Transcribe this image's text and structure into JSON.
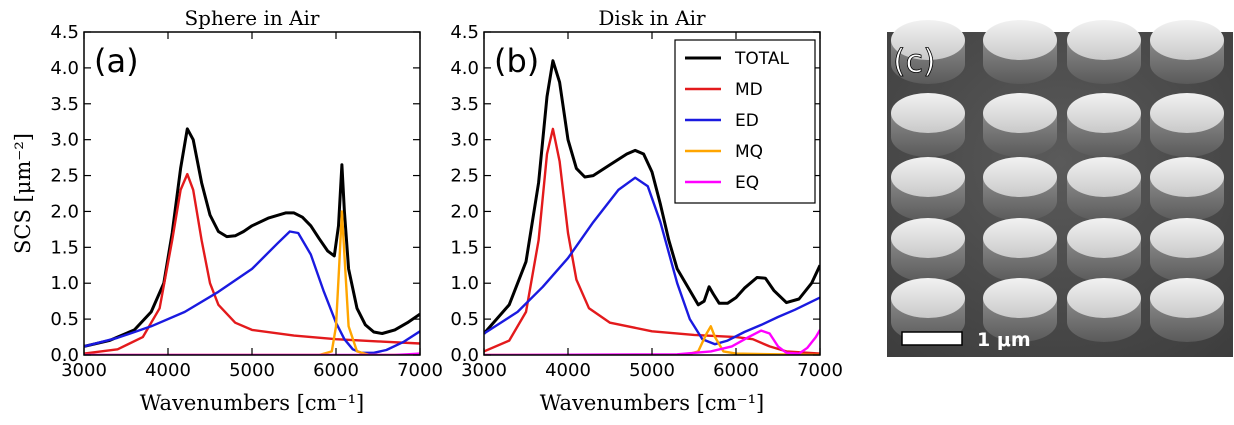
{
  "figure": {
    "panel_c": {
      "label": "(c)",
      "scale_bar_label": "1 μm"
    }
  },
  "chart_data": [
    {
      "type": "line",
      "panel_label": "(a)",
      "title": "Sphere in Air",
      "xlabel": "Wavenumbers [cm⁻¹]",
      "ylabel": "SCS [μm⁻²]",
      "xlim": [
        3000,
        7000
      ],
      "ylim": [
        0,
        4.5
      ],
      "xticks": [
        "3000",
        "4000",
        "5000",
        "6000",
        "7000"
      ],
      "yticks": [
        "0.0",
        "0.5",
        "1.0",
        "1.5",
        "2.0",
        "2.5",
        "3.0",
        "3.5",
        "4.0",
        "4.5"
      ],
      "grid": false,
      "series": [
        {
          "name": "TOTAL",
          "color": "#000000",
          "points": [
            [
              3000,
              0.12
            ],
            [
              3300,
              0.2
            ],
            [
              3600,
              0.35
            ],
            [
              3800,
              0.6
            ],
            [
              3950,
              1.0
            ],
            [
              4050,
              1.7
            ],
            [
              4150,
              2.6
            ],
            [
              4230,
              3.15
            ],
            [
              4300,
              3.0
            ],
            [
              4400,
              2.4
            ],
            [
              4500,
              1.95
            ],
            [
              4600,
              1.72
            ],
            [
              4700,
              1.65
            ],
            [
              4800,
              1.66
            ],
            [
              4900,
              1.72
            ],
            [
              5000,
              1.8
            ],
            [
              5200,
              1.91
            ],
            [
              5400,
              1.98
            ],
            [
              5500,
              1.98
            ],
            [
              5600,
              1.92
            ],
            [
              5700,
              1.8
            ],
            [
              5800,
              1.62
            ],
            [
              5900,
              1.45
            ],
            [
              5980,
              1.38
            ],
            [
              6030,
              1.8
            ],
            [
              6070,
              2.65
            ],
            [
              6100,
              2.0
            ],
            [
              6150,
              1.2
            ],
            [
              6250,
              0.65
            ],
            [
              6350,
              0.42
            ],
            [
              6450,
              0.32
            ],
            [
              6550,
              0.3
            ],
            [
              6700,
              0.35
            ],
            [
              6850,
              0.45
            ],
            [
              7000,
              0.57
            ]
          ]
        },
        {
          "name": "MD",
          "color": "#e31a1c",
          "points": [
            [
              3000,
              0.02
            ],
            [
              3400,
              0.08
            ],
            [
              3700,
              0.25
            ],
            [
              3900,
              0.65
            ],
            [
              4050,
              1.6
            ],
            [
              4150,
              2.3
            ],
            [
              4230,
              2.52
            ],
            [
              4300,
              2.3
            ],
            [
              4400,
              1.6
            ],
            [
              4500,
              1.0
            ],
            [
              4600,
              0.7
            ],
            [
              4800,
              0.45
            ],
            [
              5000,
              0.35
            ],
            [
              5500,
              0.27
            ],
            [
              6000,
              0.22
            ],
            [
              6500,
              0.19
            ],
            [
              7000,
              0.16
            ]
          ]
        },
        {
          "name": "ED",
          "color": "#1a1ae0",
          "points": [
            [
              3000,
              0.12
            ],
            [
              3400,
              0.24
            ],
            [
              3800,
              0.4
            ],
            [
              4200,
              0.6
            ],
            [
              4600,
              0.88
            ],
            [
              5000,
              1.2
            ],
            [
              5300,
              1.55
            ],
            [
              5450,
              1.72
            ],
            [
              5550,
              1.7
            ],
            [
              5700,
              1.4
            ],
            [
              5850,
              0.9
            ],
            [
              6000,
              0.45
            ],
            [
              6100,
              0.22
            ],
            [
              6200,
              0.08
            ],
            [
              6300,
              0.03
            ],
            [
              6450,
              0.03
            ],
            [
              6600,
              0.07
            ],
            [
              6800,
              0.18
            ],
            [
              7000,
              0.33
            ]
          ]
        },
        {
          "name": "MQ",
          "color": "#ffa500",
          "points": [
            [
              3000,
              0.0
            ],
            [
              5800,
              0.0
            ],
            [
              5950,
              0.05
            ],
            [
              6000,
              0.4
            ],
            [
              6040,
              1.3
            ],
            [
              6070,
              2.0
            ],
            [
              6100,
              1.4
            ],
            [
              6150,
              0.4
            ],
            [
              6250,
              0.05
            ],
            [
              6400,
              0.0
            ],
            [
              7000,
              0.0
            ]
          ]
        },
        {
          "name": "EQ",
          "color": "#ff00ff",
          "points": [
            [
              3000,
              0.0
            ],
            [
              6700,
              0.0
            ],
            [
              6850,
              0.01
            ],
            [
              7000,
              0.02
            ]
          ]
        }
      ]
    },
    {
      "type": "line",
      "panel_label": "(b)",
      "title": "Disk in Air",
      "xlabel": "Wavenumbers [cm⁻¹]",
      "ylabel": "",
      "xlim": [
        3000,
        7000
      ],
      "ylim": [
        0,
        4.5
      ],
      "xticks": [
        "3000",
        "4000",
        "5000",
        "6000",
        "7000"
      ],
      "yticks": [
        "0.0",
        "0.5",
        "1.0",
        "1.5",
        "2.0",
        "2.5",
        "3.0",
        "3.5",
        "4.0",
        "4.5"
      ],
      "grid": false,
      "legend": {
        "position": "top-right",
        "entries": [
          "TOTAL",
          "MD",
          "ED",
          "MQ",
          "EQ"
        ]
      },
      "series": [
        {
          "name": "TOTAL",
          "color": "#000000",
          "points": [
            [
              3000,
              0.3
            ],
            [
              3300,
              0.7
            ],
            [
              3500,
              1.3
            ],
            [
              3650,
              2.4
            ],
            [
              3750,
              3.6
            ],
            [
              3820,
              4.1
            ],
            [
              3900,
              3.8
            ],
            [
              4000,
              3.0
            ],
            [
              4100,
              2.6
            ],
            [
              4200,
              2.48
            ],
            [
              4300,
              2.5
            ],
            [
              4500,
              2.65
            ],
            [
              4700,
              2.8
            ],
            [
              4800,
              2.85
            ],
            [
              4900,
              2.8
            ],
            [
              5000,
              2.55
            ],
            [
              5100,
              2.1
            ],
            [
              5200,
              1.6
            ],
            [
              5300,
              1.2
            ],
            [
              5450,
              0.9
            ],
            [
              5550,
              0.7
            ],
            [
              5620,
              0.75
            ],
            [
              5680,
              0.95
            ],
            [
              5730,
              0.85
            ],
            [
              5800,
              0.72
            ],
            [
              5900,
              0.72
            ],
            [
              6000,
              0.8
            ],
            [
              6100,
              0.93
            ],
            [
              6250,
              1.08
            ],
            [
              6350,
              1.07
            ],
            [
              6450,
              0.9
            ],
            [
              6600,
              0.73
            ],
            [
              6750,
              0.78
            ],
            [
              6900,
              1.0
            ],
            [
              7000,
              1.25
            ]
          ]
        },
        {
          "name": "MD",
          "color": "#e31a1c",
          "points": [
            [
              3000,
              0.05
            ],
            [
              3300,
              0.2
            ],
            [
              3500,
              0.6
            ],
            [
              3650,
              1.6
            ],
            [
              3750,
              2.8
            ],
            [
              3820,
              3.15
            ],
            [
              3900,
              2.7
            ],
            [
              4000,
              1.7
            ],
            [
              4100,
              1.05
            ],
            [
              4250,
              0.65
            ],
            [
              4500,
              0.45
            ],
            [
              5000,
              0.33
            ],
            [
              5500,
              0.28
            ],
            [
              6000,
              0.25
            ],
            [
              6200,
              0.22
            ],
            [
              6400,
              0.12
            ],
            [
              6600,
              0.05
            ],
            [
              7000,
              0.02
            ]
          ]
        },
        {
          "name": "ED",
          "color": "#1a1ae0",
          "points": [
            [
              3000,
              0.3
            ],
            [
              3400,
              0.6
            ],
            [
              3700,
              0.95
            ],
            [
              4000,
              1.35
            ],
            [
              4300,
              1.85
            ],
            [
              4600,
              2.3
            ],
            [
              4800,
              2.47
            ],
            [
              4950,
              2.35
            ],
            [
              5100,
              1.85
            ],
            [
              5300,
              1.0
            ],
            [
              5450,
              0.5
            ],
            [
              5600,
              0.22
            ],
            [
              5750,
              0.15
            ],
            [
              5900,
              0.2
            ],
            [
              6100,
              0.32
            ],
            [
              6300,
              0.42
            ],
            [
              6500,
              0.53
            ],
            [
              6700,
              0.63
            ],
            [
              7000,
              0.8
            ]
          ]
        },
        {
          "name": "MQ",
          "color": "#ffa500",
          "points": [
            [
              3000,
              0.0
            ],
            [
              5400,
              0.0
            ],
            [
              5550,
              0.05
            ],
            [
              5650,
              0.3
            ],
            [
              5700,
              0.4
            ],
            [
              5750,
              0.25
            ],
            [
              5850,
              0.05
            ],
            [
              6000,
              0.02
            ],
            [
              7000,
              0.0
            ]
          ]
        },
        {
          "name": "EQ",
          "color": "#ff00ff",
          "points": [
            [
              3000,
              0.0
            ],
            [
              5300,
              0.01
            ],
            [
              5700,
              0.05
            ],
            [
              5950,
              0.12
            ],
            [
              6150,
              0.25
            ],
            [
              6300,
              0.34
            ],
            [
              6400,
              0.3
            ],
            [
              6500,
              0.12
            ],
            [
              6600,
              0.03
            ],
            [
              6750,
              0.02
            ],
            [
              6850,
              0.1
            ],
            [
              6950,
              0.25
            ],
            [
              7000,
              0.35
            ]
          ]
        }
      ]
    }
  ]
}
